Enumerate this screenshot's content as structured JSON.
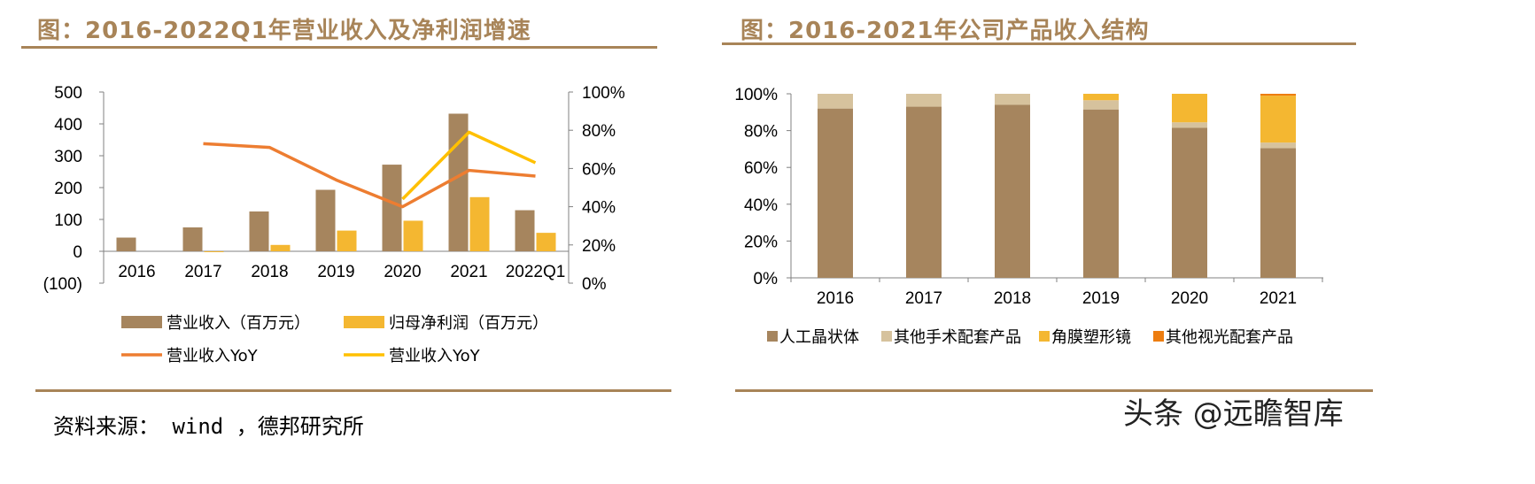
{
  "left": {
    "title": "图：2016-2022Q1年营业收入及净利润增速"
  },
  "right": {
    "title": "图：2016-2021年公司产品收入结构"
  },
  "footer": {
    "source": "资料来源： wind ，德邦研究所",
    "watermark": "头条 @远瞻智库"
  },
  "colors": {
    "title": "#a88458",
    "revenue": "#a6855e",
    "profit": "#f4b731",
    "rev_yoy": "#ed7d31",
    "profit_yoy": "#ffc000",
    "other_surgical": "#d6c29d",
    "other_vision": "#ed7d10",
    "neg_tick": "#ff0000"
  },
  "chart_data": [
    {
      "type": "bar+line",
      "categories": [
        "2016",
        "2017",
        "2018",
        "2019",
        "2020",
        "2021",
        "2022Q1"
      ],
      "y_left": {
        "ticks": [
          "500",
          "400",
          "300",
          "200",
          "100",
          "0",
          "(100)"
        ],
        "lim": [
          -100,
          500
        ]
      },
      "y_right": {
        "ticks": [
          "100%",
          "80%",
          "60%",
          "40%",
          "20%",
          "0%"
        ],
        "lim": [
          0,
          100
        ]
      },
      "series": [
        {
          "name": "营业收入（百万元）",
          "kind": "bar",
          "axis": "left",
          "values": [
            43,
            75,
            125,
            193,
            272,
            432,
            129
          ]
        },
        {
          "name": "归母净利润（百万元）",
          "kind": "bar",
          "axis": "left",
          "values": [
            null,
            -2,
            20,
            65,
            96,
            170,
            58
          ]
        },
        {
          "name": "营业收入YoY",
          "kind": "line",
          "axis": "right",
          "values": [
            null,
            73,
            71,
            54,
            40,
            59,
            56
          ]
        },
        {
          "name": "营业收入YoY",
          "kind": "line",
          "axis": "right",
          "values": [
            null,
            null,
            null,
            null,
            44,
            79,
            63
          ]
        }
      ]
    },
    {
      "type": "stacked-bar",
      "categories": [
        "2016",
        "2017",
        "2018",
        "2019",
        "2020",
        "2021"
      ],
      "y": {
        "ticks": [
          "100%",
          "80%",
          "60%",
          "40%",
          "20%",
          "0%"
        ],
        "lim": [
          0,
          100
        ]
      },
      "series": [
        {
          "name": "人工晶状体",
          "values": [
            92,
            93,
            94,
            91.5,
            81.5,
            70.5
          ]
        },
        {
          "name": "其他手术配套产品",
          "values": [
            8,
            7,
            6,
            5,
            3,
            3
          ]
        },
        {
          "name": "角膜塑形镜",
          "values": [
            0,
            0,
            0,
            3.5,
            15.5,
            25.5
          ]
        },
        {
          "name": "其他视光配套产品",
          "values": [
            0,
            0,
            0,
            0,
            0,
            1
          ]
        }
      ]
    }
  ]
}
